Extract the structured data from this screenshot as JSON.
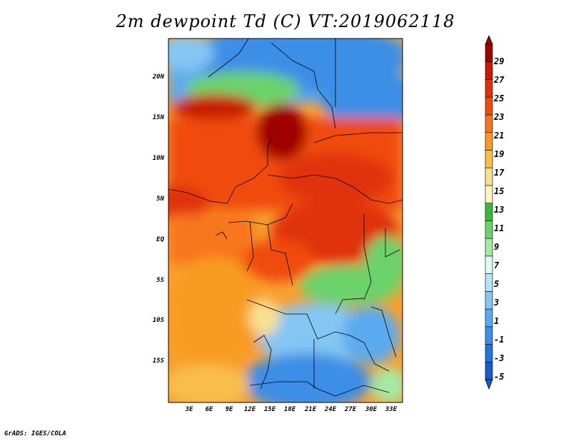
{
  "title": "2m dewpoint Td (C) VT:2019062118",
  "credit": "GrADS: IGES/COLA",
  "lat_labels": [
    "20N",
    "15N",
    "10N",
    "5N",
    "EQ",
    "5S",
    "10S",
    "15S"
  ],
  "lon_labels": [
    "3E",
    "6E",
    "9E",
    "12E",
    "15E",
    "18E",
    "21E",
    "24E",
    "27E",
    "30E",
    "33E"
  ],
  "colorbar": {
    "labels": [
      "29",
      "27",
      "25",
      "23",
      "21",
      "19",
      "17",
      "15",
      "13",
      "11",
      "9",
      "7",
      "5",
      "3",
      "1",
      "-1",
      "-3",
      "-5"
    ],
    "colors": [
      "#a00000",
      "#c81a05",
      "#e0300a",
      "#f04b0f",
      "#f8761a",
      "#f89b22",
      "#f8be48",
      "#f8e090",
      "#fdf7c8",
      "#3aba3a",
      "#6cd26c",
      "#a6e8a6",
      "#e2f9ef",
      "#b4e4f8",
      "#84c6f4",
      "#5aaaef",
      "#3c8ee6",
      "#2274dc",
      "#1c5acc"
    ]
  }
}
